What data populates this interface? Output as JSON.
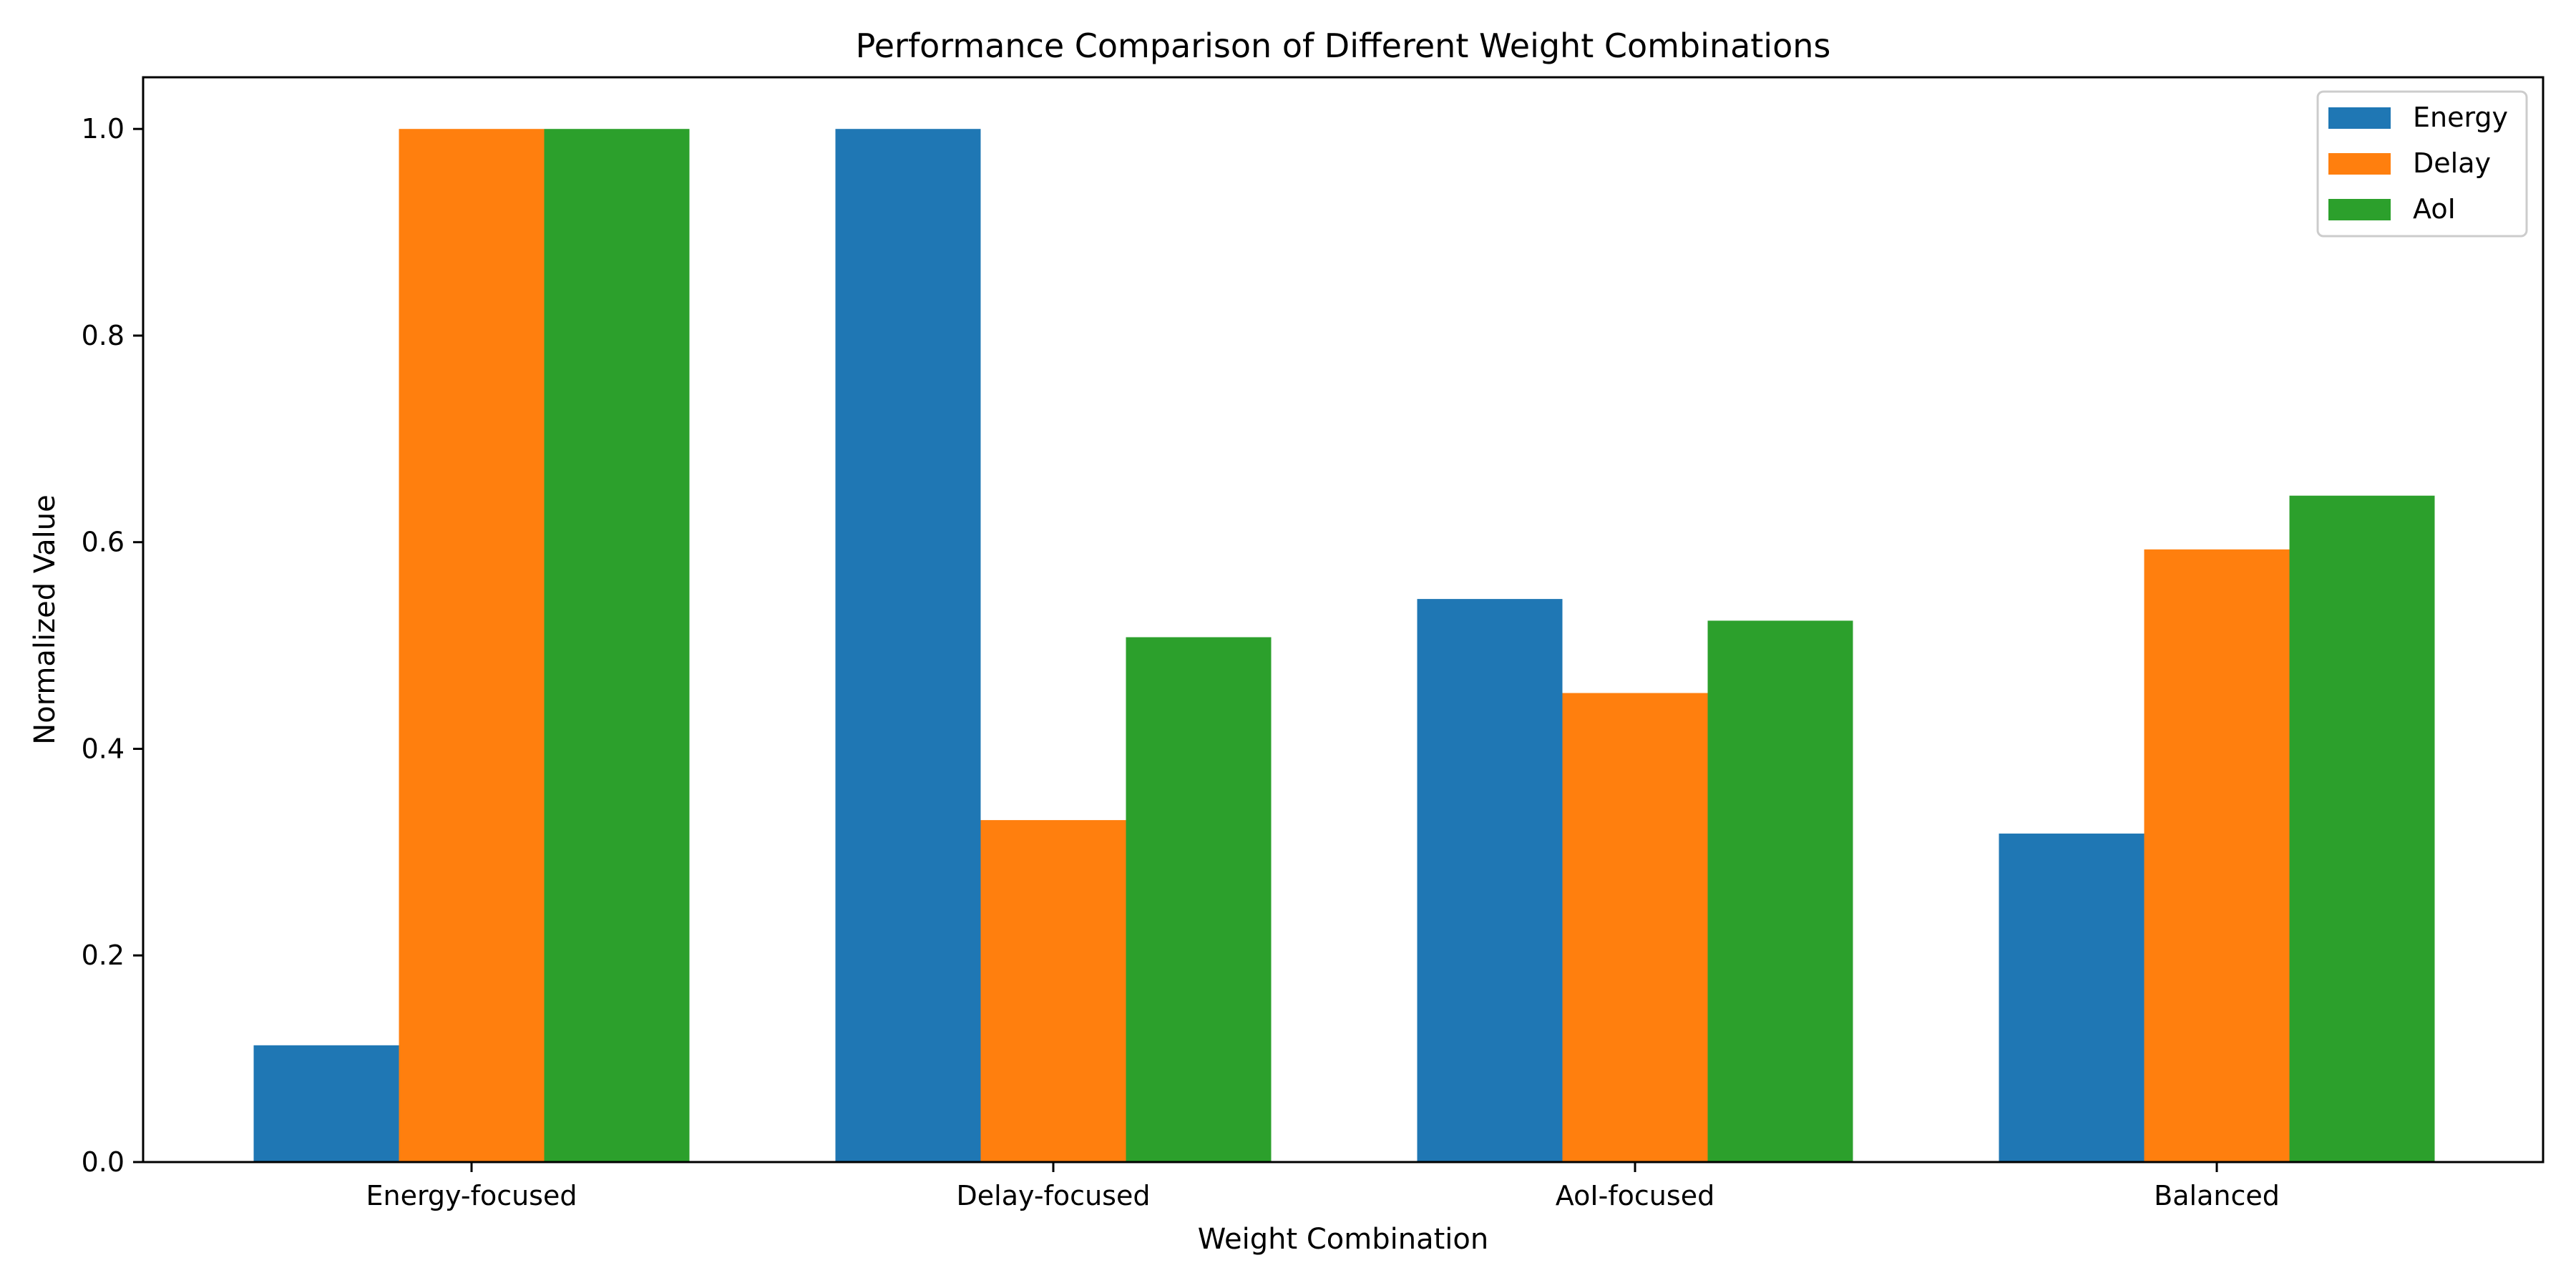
{
  "chart_data": {
    "type": "bar",
    "title": "Performance Comparison of Different Weight Combinations",
    "xlabel": "Weight Combination",
    "ylabel": "Normalized Value",
    "categories": [
      "Energy-focused",
      "Delay-focused",
      "AoI-focused",
      "Balanced"
    ],
    "series": [
      {
        "name": "Energy",
        "color": "#1f77b4",
        "values": [
          0.113,
          1.0,
          0.545,
          0.318
        ]
      },
      {
        "name": "Delay",
        "color": "#ff7f0e",
        "values": [
          1.0,
          0.331,
          0.454,
          0.593
        ]
      },
      {
        "name": "AoI",
        "color": "#2ca02c",
        "values": [
          1.0,
          0.508,
          0.524,
          0.645
        ]
      }
    ],
    "ylim": [
      0,
      1.05
    ],
    "yticks": [
      "0.0",
      "0.2",
      "0.4",
      "0.6",
      "0.8",
      "1.0"
    ],
    "grid": false,
    "legend_position": "top-right"
  }
}
